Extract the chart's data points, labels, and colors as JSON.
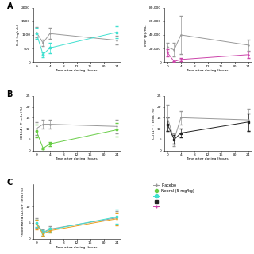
{
  "time_points": [
    0,
    2,
    4,
    24
  ],
  "panel_A_left": {
    "ylabel": "IL-2 (pg/mL)",
    "xlabel": "Time after dosing (hours)",
    "ylim": [
      0,
      2000
    ],
    "yticks": [
      0,
      500,
      1000,
      1500,
      2000
    ],
    "ytick_labels": [
      "0",
      "500",
      "1000",
      "1500",
      "2000"
    ],
    "xticks": [
      0,
      4,
      8,
      12,
      16,
      20,
      24
    ],
    "series": [
      {
        "color": "#999999",
        "marker": "+",
        "values": [
          1100,
          700,
          1050,
          800
        ],
        "yerr": [
          180,
          120,
          200,
          160
        ]
      },
      {
        "color": "#40E0D0",
        "marker": "o",
        "values": [
          1050,
          280,
          520,
          1100
        ],
        "yerr": [
          200,
          90,
          200,
          220
        ]
      }
    ]
  },
  "panel_A_right": {
    "ylabel": "IFNγ (pg/mL)",
    "xlabel": "Time after dosing (hours)",
    "ylim": [
      0,
      80000
    ],
    "yticks": [
      0,
      20000,
      40000,
      60000,
      80000
    ],
    "ytick_labels": [
      "0",
      "20,000",
      "40,000",
      "60,000",
      "80,000"
    ],
    "xticks": [
      0,
      4,
      8,
      12,
      16,
      20,
      24
    ],
    "series": [
      {
        "color": "#999999",
        "marker": "+",
        "values": [
          22000,
          18000,
          40000,
          25000
        ],
        "yerr": [
          6000,
          10000,
          28000,
          8000
        ]
      },
      {
        "color": "#CC44AA",
        "marker": "+",
        "values": [
          14000,
          1000,
          4000,
          11000
        ],
        "yerr": [
          5000,
          500,
          2000,
          5000
        ]
      }
    ]
  },
  "panel_B_left": {
    "ylabel": "CD154+ T cells (%)",
    "xlabel": "Time after dosing (hours)",
    "ylim": [
      0,
      25
    ],
    "yticks": [
      0,
      5,
      10,
      15,
      20,
      25
    ],
    "ytick_labels": [
      "0",
      "5",
      "10",
      "15",
      "20",
      "25"
    ],
    "xticks": [
      0,
      4,
      8,
      12,
      16,
      20,
      24
    ],
    "series": [
      {
        "color": "#999999",
        "marker": "+",
        "values": [
          10,
          12,
          12,
          11
        ],
        "yerr": [
          3,
          2,
          2,
          3
        ]
      },
      {
        "color": "#66CC44",
        "marker": "o",
        "values": [
          9,
          1.0,
          3,
          9.5
        ],
        "yerr": [
          3,
          0.4,
          1,
          3
        ]
      }
    ]
  },
  "panel_B_right": {
    "ylabel": "CD71+ T cells (%)",
    "xlabel": "Time after dosing (hours)",
    "ylim": [
      0,
      25
    ],
    "yticks": [
      0,
      5,
      10,
      15,
      20,
      25
    ],
    "ytick_labels": [
      "0",
      "5",
      "10",
      "15",
      "20",
      "25"
    ],
    "xticks": [
      0,
      4,
      8,
      12,
      16,
      20,
      24
    ],
    "series": [
      {
        "color": "#999999",
        "marker": "+",
        "values": [
          15,
          5,
          15,
          14
        ],
        "yerr": [
          6,
          3,
          3,
          5
        ]
      },
      {
        "color": "#222222",
        "marker": "s",
        "values": [
          12,
          5,
          8,
          13
        ],
        "yerr": [
          3,
          2,
          2,
          4
        ]
      }
    ]
  },
  "panel_C": {
    "ylabel": "Proliferated CD30+ cells (%)",
    "xlabel": "Time after dosing (hours)",
    "ylim": [
      0,
      17
    ],
    "yticks": [
      0,
      5,
      10
    ],
    "ytick_labels": [
      "0",
      "5",
      "10"
    ],
    "xticks": [
      0,
      4,
      8,
      12,
      16,
      20,
      24
    ],
    "series": [
      {
        "color": "#999999",
        "marker": "+",
        "values": [
          5.0,
          2.0,
          3.0,
          6.5
        ],
        "yerr": [
          1.5,
          1.0,
          0.8,
          2.0
        ]
      },
      {
        "color": "#40E0D0",
        "marker": "o",
        "values": [
          4.8,
          1.8,
          2.8,
          6.8
        ],
        "yerr": [
          1.2,
          0.8,
          0.6,
          2.2
        ]
      },
      {
        "color": "#E8A020",
        "marker": "+",
        "values": [
          4.5,
          1.5,
          2.5,
          6.2
        ],
        "yerr": [
          1.5,
          0.5,
          0.5,
          2.0
        ]
      }
    ]
  },
  "legend_entries": [
    {
      "label": "Placebo",
      "color": "#999999",
      "marker": "+"
    },
    {
      "label": "Neoral (5 mg/kg)",
      "color": "#66CC44",
      "marker": "o"
    },
    {
      "label": "",
      "color": "#40E0D0",
      "marker": "o"
    },
    {
      "label": "",
      "color": "#222222",
      "marker": "s"
    },
    {
      "label": "",
      "color": "#CC44AA",
      "marker": "+"
    }
  ],
  "background_color": "#ffffff"
}
